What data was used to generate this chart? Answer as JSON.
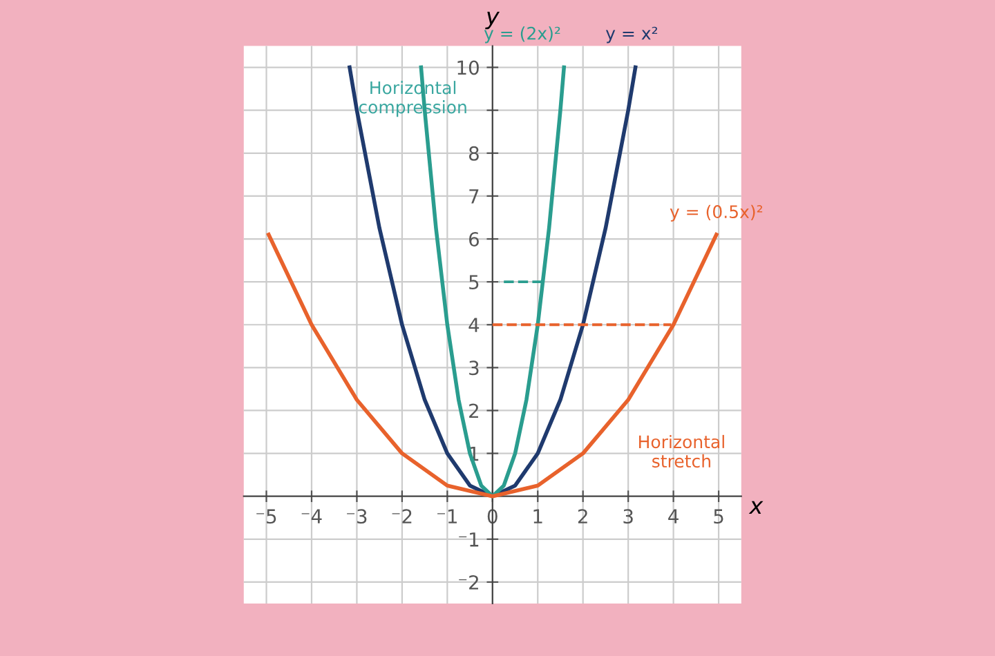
{
  "chart_data": {
    "type": "line",
    "xlabel": "x",
    "ylabel": "y",
    "xlim": [
      -5.5,
      5.5
    ],
    "ylim": [
      -2.5,
      10.5
    ],
    "xticks": [
      {
        "value": -5,
        "label": "⁻5"
      },
      {
        "value": -4,
        "label": "⁻4"
      },
      {
        "value": -3,
        "label": "⁻3"
      },
      {
        "value": -2,
        "label": "⁻2"
      },
      {
        "value": -1,
        "label": "⁻1"
      },
      0,
      1,
      2,
      3,
      4,
      5
    ],
    "yticks": [
      {
        "value": -2,
        "label": "⁻2"
      },
      {
        "value": -1,
        "label": "⁻1"
      },
      1,
      2,
      3,
      4,
      5,
      6,
      7,
      8,
      {
        "value": 9,
        "label": null
      },
      10
    ],
    "grid": true,
    "marker": "none",
    "line_style": "solid",
    "series": [
      {
        "color": "#1f3a6e",
        "x": [
          -3.16,
          -3,
          -2.5,
          -2,
          -1.5,
          -1,
          -0.5,
          0,
          0.5,
          1,
          1.5,
          2,
          2.5,
          3,
          3.16
        ],
        "values": [
          10,
          9,
          6.25,
          4,
          2.25,
          1,
          0.25,
          0,
          0.25,
          1,
          2.25,
          4,
          6.25,
          9,
          10
        ]
      },
      {
        "color": "#2a9d8f",
        "x": [
          -1.58,
          -1.5,
          -1.25,
          -1,
          -0.75,
          -0.5,
          -0.25,
          0,
          0.25,
          0.5,
          0.75,
          1,
          1.25,
          1.5,
          1.58
        ],
        "values": [
          10,
          9,
          6.25,
          4,
          2.25,
          1,
          0.25,
          0,
          0.25,
          1,
          2.25,
          4,
          6.25,
          9,
          10
        ]
      },
      {
        "color": "#e8622c",
        "x": [
          -4.95,
          -4,
          -3,
          -2,
          -1,
          0,
          1,
          2,
          3,
          4,
          4.95
        ],
        "values": [
          6.1,
          4,
          2.25,
          1,
          0.25,
          0,
          0.25,
          1,
          2.25,
          4,
          6.1
        ]
      },
      {
        "color": "#2a9d8f",
        "line_style": "dashed",
        "x": [
          1.1,
          0.15
        ],
        "values": [
          5,
          5
        ]
      },
      {
        "color": "#e8622c",
        "line_style": "dashed",
        "x": [
          0,
          3.95
        ],
        "values": [
          4,
          4
        ]
      }
    ],
    "annotations": [
      "y = (2x)²",
      "y = x²",
      "y = (0.5x)²",
      "Horizontal\ncompression",
      "Horizontal\nstretch"
    ]
  }
}
